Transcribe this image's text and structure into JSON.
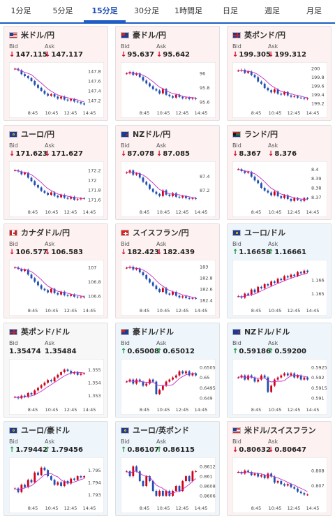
{
  "tabs": [
    "1分足",
    "5分足",
    "15分足",
    "30分足",
    "1時間足",
    "日足",
    "週足",
    "月足"
  ],
  "active_tab": 2,
  "labels": {
    "bid": "Bid",
    "ask": "Ask"
  },
  "colors": {
    "down_bg": "#fdf1f1",
    "up_bg": "#eef6fc",
    "candle_up": "#d0021b",
    "candle_down": "#1f4fb0",
    "ma_line": "#c42fc4",
    "arrow_down": "#d0021b",
    "arrow_up": "#1a9a3a"
  },
  "cards": [
    {
      "name": "米ドル/円",
      "flag": "us",
      "trend": "down",
      "bid": "147.115",
      "ask": "147.117",
      "y_ticks": [
        "147.8",
        "147.6",
        "147.4",
        "147.2"
      ],
      "x_ticks": [
        "8:45",
        "10:45",
        "12:45",
        "14:45"
      ],
      "chart_data": {
        "type": "candlestick",
        "x": [
          "8:45",
          "10:45",
          "12:45",
          "14:45"
        ],
        "ylim": [
          147.1,
          147.9
        ],
        "closes": [
          147.85,
          147.82,
          147.74,
          147.7,
          147.66,
          147.6,
          147.52,
          147.46,
          147.4,
          147.34,
          147.3,
          147.33,
          147.28,
          147.24,
          147.28,
          147.22,
          147.2,
          147.23,
          147.18,
          147.17,
          147.14,
          147.12
        ]
      }
    },
    {
      "name": "豪ドル/円",
      "flag": "au",
      "trend": "down",
      "bid": "95.637",
      "ask": "95.642",
      "y_ticks": [
        "96",
        "95.8",
        "95.6"
      ],
      "x_ticks": [
        "8:45",
        "10:45",
        "12:45",
        "14:45"
      ],
      "chart_data": {
        "type": "candlestick",
        "x": [
          "8:45",
          "10:45",
          "12:45",
          "14:45"
        ],
        "ylim": [
          95.55,
          96.1
        ],
        "closes": [
          96.0,
          96.02,
          95.98,
          96.0,
          95.95,
          95.9,
          95.86,
          95.82,
          95.78,
          95.76,
          95.72,
          95.78,
          95.7,
          95.68,
          95.66,
          95.7,
          95.67,
          95.65,
          95.66,
          95.64,
          95.65,
          95.64
        ]
      }
    },
    {
      "name": "英ポンド/円",
      "flag": "gb",
      "trend": "down",
      "bid": "199.305",
      "ask": "199.312",
      "y_ticks": [
        "200",
        "199.8",
        "199.6",
        "199.4",
        "199.2"
      ],
      "x_ticks": [
        "8:45",
        "10:45",
        "12:45",
        "14:45"
      ],
      "chart_data": {
        "type": "candlestick",
        "x": [
          "8:45",
          "10:45",
          "12:45",
          "14:45"
        ],
        "ylim": [
          199.15,
          200.05
        ],
        "closes": [
          199.95,
          199.97,
          199.9,
          199.93,
          199.85,
          199.8,
          199.7,
          199.65,
          199.55,
          199.5,
          199.45,
          199.52,
          199.42,
          199.4,
          199.46,
          199.38,
          199.35,
          199.36,
          199.33,
          199.32,
          199.3,
          199.31
        ]
      }
    },
    {
      "name": "ユーロ/円",
      "flag": "eu",
      "trend": "down",
      "bid": "171.623",
      "ask": "171.627",
      "y_ticks": [
        "172.2",
        "172",
        "171.8",
        "171.6"
      ],
      "x_ticks": [
        "8:45",
        "10:45",
        "12:45",
        "14:45"
      ],
      "chart_data": {
        "type": "candlestick",
        "x": [
          "8:45",
          "10:45",
          "12:45",
          "14:45"
        ],
        "ylim": [
          171.5,
          172.3
        ],
        "closes": [
          172.2,
          172.18,
          172.12,
          172.15,
          172.05,
          171.98,
          171.9,
          171.85,
          171.78,
          171.74,
          171.7,
          171.75,
          171.68,
          171.65,
          171.7,
          171.64,
          171.62,
          171.66,
          171.6,
          171.61,
          171.63,
          171.62
        ]
      }
    },
    {
      "name": "NZドル/円",
      "flag": "nz",
      "trend": "down",
      "bid": "87.078",
      "ask": "87.085",
      "y_ticks": [
        "87.4",
        "87.2"
      ],
      "x_ticks": [
        "8:45",
        "10:45",
        "12:45",
        "14:45"
      ],
      "chart_data": {
        "type": "candlestick",
        "x": [
          "8:45",
          "10:45",
          "12:45",
          "14:45"
        ],
        "ylim": [
          87.0,
          87.55
        ],
        "closes": [
          87.45,
          87.48,
          87.42,
          87.44,
          87.38,
          87.32,
          87.28,
          87.22,
          87.18,
          87.15,
          87.12,
          87.2,
          87.14,
          87.12,
          87.16,
          87.11,
          87.1,
          87.12,
          87.09,
          87.08,
          87.09,
          87.08
        ]
      }
    },
    {
      "name": "ランド/円",
      "flag": "za",
      "trend": "down",
      "bid": "8.367",
      "ask": "8.376",
      "y_ticks": [
        "8.4",
        "8.39",
        "8.38",
        "8.37"
      ],
      "x_ticks": [
        "8:45",
        "10:45",
        "12:45",
        "14:45"
      ],
      "chart_data": {
        "type": "candlestick",
        "x": [
          "8:45",
          "10:45",
          "12:45",
          "14:45"
        ],
        "ylim": [
          8.362,
          8.404
        ],
        "closes": [
          8.4,
          8.398,
          8.396,
          8.397,
          8.392,
          8.388,
          8.385,
          8.38,
          8.377,
          8.375,
          8.372,
          8.376,
          8.371,
          8.369,
          8.372,
          8.368,
          8.366,
          8.369,
          8.367,
          8.366,
          8.369,
          8.368
        ]
      }
    },
    {
      "name": "カナダドル/円",
      "flag": "ca",
      "trend": "down",
      "bid": "106.577",
      "ask": "106.583",
      "y_ticks": [
        "107",
        "106.8",
        "106.6"
      ],
      "x_ticks": [
        "8:45",
        "10:45",
        "12:45",
        "14:45"
      ],
      "chart_data": {
        "type": "candlestick",
        "x": [
          "8:45",
          "10:45",
          "12:45",
          "14:45"
        ],
        "ylim": [
          106.5,
          107.05
        ],
        "closes": [
          107.0,
          106.98,
          106.95,
          106.97,
          106.9,
          106.85,
          106.8,
          106.75,
          106.7,
          106.68,
          106.65,
          106.7,
          106.64,
          106.62,
          106.66,
          106.61,
          106.6,
          106.62,
          106.59,
          106.58,
          106.59,
          106.58
        ]
      }
    },
    {
      "name": "スイスフラン/円",
      "flag": "ch",
      "trend": "down",
      "bid": "182.423",
      "ask": "182.439",
      "y_ticks": [
        "183",
        "182.8",
        "182.6",
        "182.4"
      ],
      "x_ticks": [
        "8:45",
        "10:45",
        "12:45",
        "14:45"
      ],
      "chart_data": {
        "type": "candlestick",
        "x": [
          "8:45",
          "10:45",
          "12:45",
          "14:45"
        ],
        "ylim": [
          182.35,
          183.05
        ],
        "closes": [
          182.98,
          183.0,
          182.95,
          182.97,
          182.9,
          182.85,
          182.78,
          182.72,
          182.66,
          182.6,
          182.55,
          182.62,
          182.52,
          182.5,
          182.55,
          182.48,
          182.45,
          182.47,
          182.44,
          182.43,
          182.44,
          182.43
        ]
      }
    },
    {
      "name": "ユーロ/ドル",
      "flag": "eu-us",
      "trend": "up",
      "bid": "1.16658",
      "ask": "1.16661",
      "y_ticks": [
        "1.166",
        "1.165"
      ],
      "x_ticks": [
        "8:45",
        "10:45",
        "12:45",
        "14:45"
      ],
      "chart_data": {
        "type": "candlestick",
        "x": [
          "8:45",
          "10:45",
          "12:45",
          "14:45"
        ],
        "ylim": [
          1.1643,
          1.1672
        ],
        "closes": [
          1.1648,
          1.1647,
          1.165,
          1.1649,
          1.1653,
          1.1651,
          1.1655,
          1.1654,
          1.1657,
          1.1656,
          1.1659,
          1.1658,
          1.1661,
          1.166,
          1.1663,
          1.1662,
          1.1664,
          1.1663,
          1.1666,
          1.1665,
          1.1667,
          1.1666
        ]
      }
    },
    {
      "name": "英ポンド/ドル",
      "flag": "gb-us",
      "trend": "flat",
      "bid": "1.35474",
      "ask": "1.35484",
      "y_ticks": [
        "1.355",
        "1.354",
        "1.353"
      ],
      "x_ticks": [
        "8:45",
        "10:45",
        "12:45",
        "14:45"
      ],
      "chart_data": {
        "type": "candlestick",
        "x": [
          "8:45",
          "10:45",
          "12:45",
          "14:45"
        ],
        "ylim": [
          1.3525,
          1.3555
        ],
        "closes": [
          1.3529,
          1.3528,
          1.353,
          1.3529,
          1.3532,
          1.3531,
          1.3534,
          1.3536,
          1.3538,
          1.354,
          1.3542,
          1.3541,
          1.3544,
          1.3546,
          1.3548,
          1.355,
          1.3549,
          1.3547,
          1.3548,
          1.3546,
          1.3547,
          1.3547
        ]
      }
    },
    {
      "name": "豪ドル/ドル",
      "flag": "au-us",
      "trend": "up",
      "bid": "0.65008",
      "ask": "0.65012",
      "y_ticks": [
        "0.6505",
        "0.65",
        "0.6495",
        "0.649"
      ],
      "x_ticks": [
        "8:45",
        "10:45",
        "12:45",
        "14:45"
      ],
      "chart_data": {
        "type": "candlestick",
        "x": [
          "8:45",
          "10:45",
          "12:45",
          "14:45"
        ],
        "ylim": [
          0.6488,
          0.6507
        ],
        "closes": [
          0.6498,
          0.6499,
          0.6497,
          0.6499,
          0.6498,
          0.6496,
          0.6497,
          0.6499,
          0.6498,
          0.6492,
          0.6494,
          0.6496,
          0.6498,
          0.6499,
          0.65,
          0.6501,
          0.6503,
          0.6502,
          0.6503,
          0.6501,
          0.6502,
          0.6501
        ]
      }
    },
    {
      "name": "NZドル/ドル",
      "flag": "nz-us",
      "trend": "up",
      "bid": "0.59186",
      "ask": "0.59200",
      "y_ticks": [
        "0.5925",
        "0.592",
        "0.5915",
        "0.591"
      ],
      "x_ticks": [
        "8:45",
        "10:45",
        "12:45",
        "14:45"
      ],
      "chart_data": {
        "type": "candlestick",
        "x": [
          "8:45",
          "10:45",
          "12:45",
          "14:45"
        ],
        "ylim": [
          0.5908,
          0.5927
        ],
        "closes": [
          0.592,
          0.5921,
          0.5919,
          0.5921,
          0.592,
          0.5918,
          0.5919,
          0.5921,
          0.592,
          0.5913,
          0.5916,
          0.5919,
          0.592,
          0.5921,
          0.5922,
          0.5921,
          0.5922,
          0.592,
          0.5921,
          0.5919,
          0.592,
          0.5919
        ]
      }
    },
    {
      "name": "ユーロ/豪ドル",
      "flag": "eu-au",
      "trend": "up",
      "bid": "1.79442",
      "ask": "1.79456",
      "y_ticks": [
        "1.795",
        "1.794",
        "1.793"
      ],
      "x_ticks": [
        "8:45",
        "10:45",
        "12:45",
        "14:45"
      ],
      "chart_data": {
        "type": "candlestick",
        "x": [
          "8:45",
          "10:45",
          "12:45",
          "14:45"
        ],
        "ylim": [
          1.7925,
          1.7957
        ],
        "closes": [
          1.7935,
          1.7932,
          1.7938,
          1.7936,
          1.7942,
          1.794,
          1.7948,
          1.7946,
          1.7952,
          1.795,
          1.7945,
          1.7942,
          1.7938,
          1.794,
          1.7937,
          1.7941,
          1.7939,
          1.7943,
          1.7942,
          1.7945,
          1.7944,
          1.7945
        ]
      }
    },
    {
      "name": "ユーロ/英ポンド",
      "flag": "eu-gb",
      "trend": "up",
      "bid": "0.86107",
      "ask": "0.86115",
      "y_ticks": [
        "0.8612",
        "0.861",
        "0.8608",
        "0.8606"
      ],
      "x_ticks": [
        "8:45",
        "10:45",
        "12:45",
        "14:45"
      ],
      "chart_data": {
        "type": "candlestick",
        "x": [
          "8:45",
          "10:45",
          "12:45",
          "14:45"
        ],
        "ylim": [
          0.8605,
          0.8613
        ],
        "closes": [
          0.8611,
          0.861,
          0.8612,
          0.8611,
          0.8609,
          0.8608,
          0.861,
          0.8609,
          0.8607,
          0.8606,
          0.8607,
          0.8606,
          0.8607,
          0.8606,
          0.8607,
          0.8608,
          0.8607,
          0.8609,
          0.861,
          0.8609,
          0.8611,
          0.8611
        ]
      }
    },
    {
      "name": "米ドル/スイスフラン",
      "flag": "us-ch",
      "trend": "down",
      "bid": "0.80632",
      "ask": "0.80647",
      "y_ticks": [
        "0.808",
        "0.807"
      ],
      "x_ticks": [
        "8:45",
        "10:45",
        "12:45",
        "14:45"
      ],
      "chart_data": {
        "type": "candlestick",
        "x": [
          "8:45",
          "10:45",
          "12:45",
          "14:45"
        ],
        "ylim": [
          0.806,
          0.8086
        ],
        "closes": [
          0.8079,
          0.8078,
          0.808,
          0.8079,
          0.8077,
          0.8078,
          0.8076,
          0.8077,
          0.8075,
          0.8078,
          0.8076,
          0.8072,
          0.8073,
          0.8071,
          0.807,
          0.8071,
          0.8069,
          0.8068,
          0.8066,
          0.8065,
          0.8064,
          0.8064
        ]
      }
    }
  ]
}
